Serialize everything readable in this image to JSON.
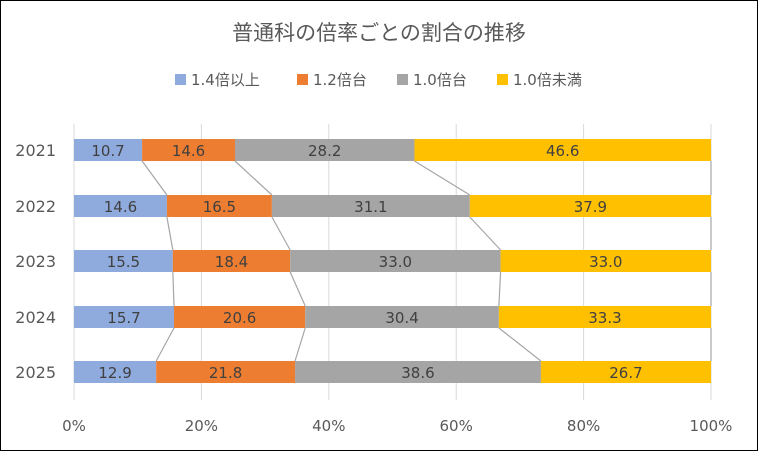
{
  "chart_data": {
    "type": "bar",
    "stacked": "percent",
    "orientation": "horizontal",
    "title": "普通科の倍率ごとの割合の推移",
    "categories": [
      "2021",
      "2022",
      "2023",
      "2024",
      "2025"
    ],
    "series": [
      {
        "name": "1.4倍以上",
        "color": "#8FAADC",
        "values": [
          10.7,
          14.6,
          15.5,
          15.7,
          12.9
        ]
      },
      {
        "name": "1.2倍台",
        "color": "#ED7D31",
        "values": [
          14.6,
          16.5,
          18.4,
          20.6,
          21.8
        ]
      },
      {
        "name": "1.0倍台",
        "color": "#A5A5A5",
        "values": [
          28.2,
          31.1,
          33.0,
          30.4,
          38.6
        ]
      },
      {
        "name": "1.0倍未満",
        "color": "#FFC000",
        "values": [
          46.6,
          37.9,
          33.0,
          33.3,
          26.7
        ]
      }
    ],
    "xlim": [
      0,
      100
    ],
    "xticks": [
      "0%",
      "20%",
      "40%",
      "60%",
      "80%",
      "100%"
    ],
    "legend_position": "top",
    "series_lines": true,
    "grid": "vertical"
  }
}
